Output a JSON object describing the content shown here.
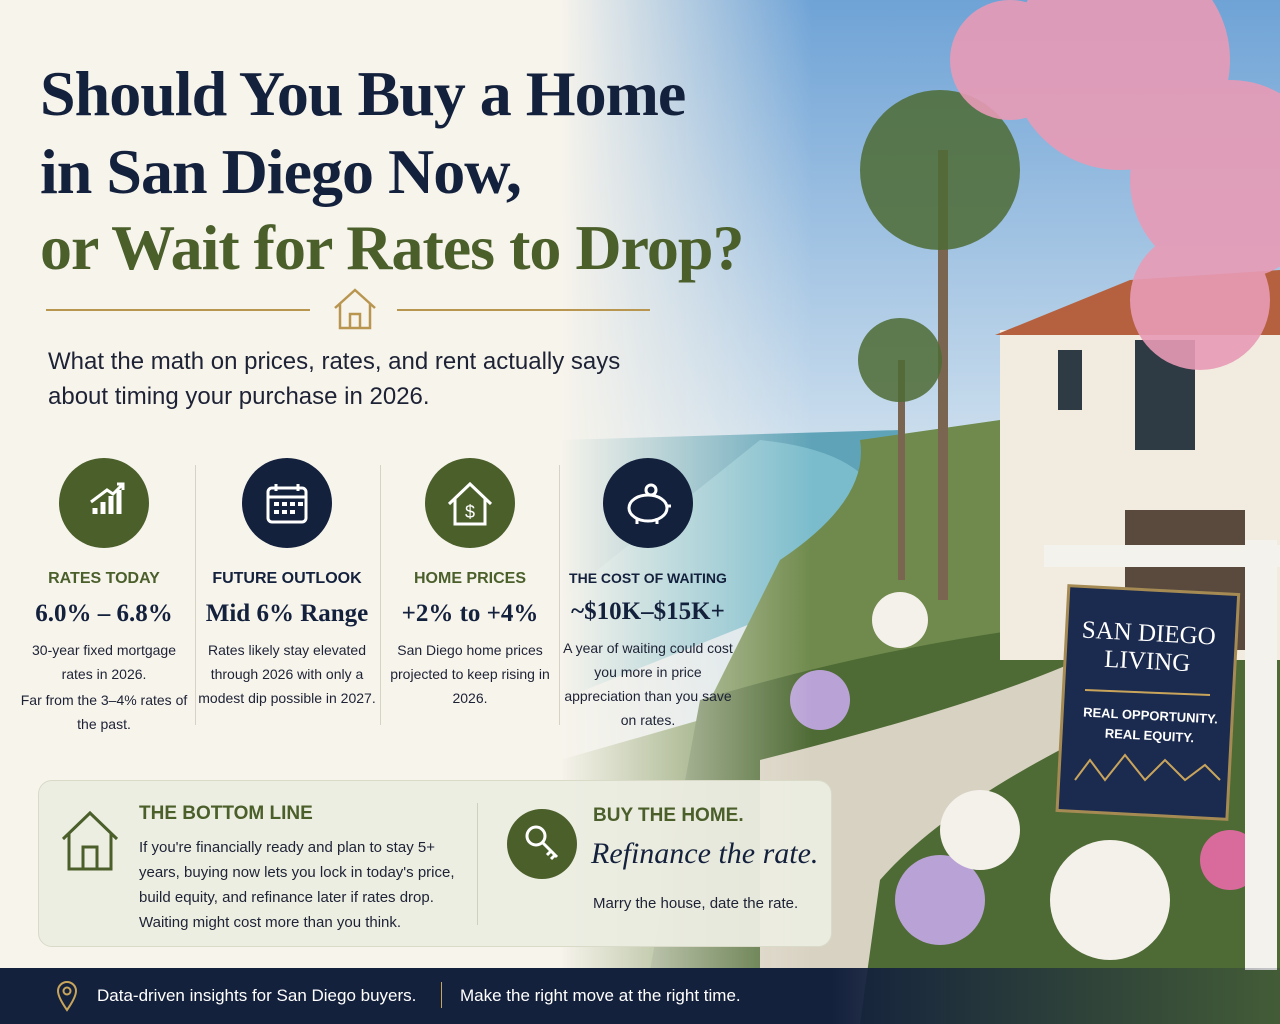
{
  "header": {
    "title": [
      "Should You Buy a Home",
      "in San Diego Now,",
      "or Wait for Rates to Drop?"
    ],
    "subtitle": "What the math on prices, rates, and rent actually says about timing your purchase in 2026."
  },
  "stats": [
    {
      "label": "RATES TODAY",
      "value": "6.0% – 6.8%",
      "description": [
        "30-year fixed mortgage rates in 2026.",
        "Far from the 3–4% rates of the past."
      ]
    },
    {
      "label": "FUTURE OUTLOOK",
      "value": "Mid 6% Range",
      "description": [
        "Rates likely stay elevated through 2026 with only a modest dip possible in 2027."
      ]
    },
    {
      "label": "HOME PRICES",
      "value": "+2% to +4%",
      "description": [
        "San Diego home prices projected to keep rising in 2026."
      ]
    },
    {
      "label": "THE COST OF WAITING",
      "value": "~$10K–$15K+",
      "description": [
        "A year of waiting could cost you more in price appreciation than you save on rates."
      ]
    }
  ],
  "sign": {
    "title": [
      "SAN DIEGO",
      "LIVING"
    ],
    "tagline": [
      "REAL OPPORTUNITY.",
      "REAL EQUITY."
    ]
  },
  "bottom_line": {
    "heading": "THE BOTTOM LINE",
    "text": "If you're financially ready and plan to stay 5+ years, buying now lets you lock in today's price, build equity, and refinance later if rates drop. Waiting might cost more than you think."
  },
  "cta": {
    "heading": "BUY THE HOME.",
    "script": "Refinance the rate.",
    "text": "Marry the house, date the rate."
  },
  "footer": [
    "Data-driven insights for San Diego buyers.",
    "Make the right move at the right time."
  ]
}
